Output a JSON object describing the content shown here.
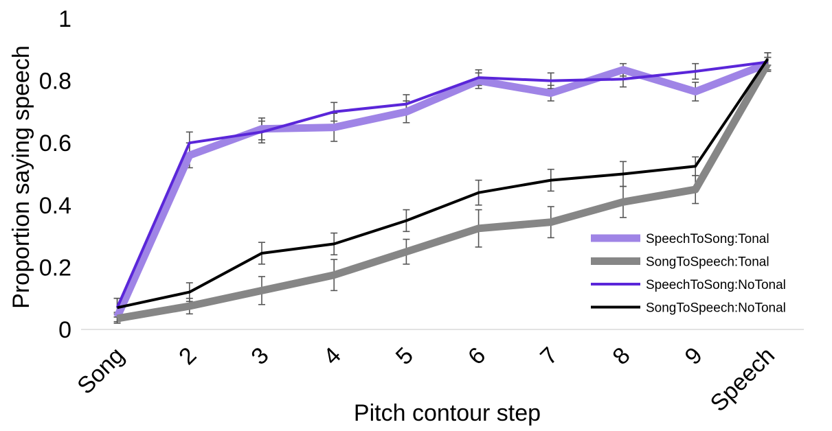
{
  "chart_data": {
    "type": "line",
    "title": "",
    "xlabel": "Pitch contour step",
    "ylabel": "Proportion saying speech",
    "categories": [
      "Song",
      "2",
      "3",
      "4",
      "5",
      "6",
      "7",
      "8",
      "9",
      "Speech"
    ],
    "ylim": [
      0,
      1
    ],
    "yticks": [
      "0",
      "0.2",
      "0.4",
      "0.6",
      "0.8",
      "1"
    ],
    "grid": false,
    "legend_position": "bottom-right",
    "series": [
      {
        "name": "SpeechToSong:Tonal",
        "color": "#9f84e6",
        "values": [
          0.04,
          0.56,
          0.645,
          0.65,
          0.7,
          0.8,
          0.76,
          0.835,
          0.765,
          0.855
        ],
        "errors": [
          0.015,
          0.04,
          0.035,
          0.045,
          0.035,
          0.025,
          0.025,
          0.02,
          0.03,
          0.02
        ]
      },
      {
        "name": "SongToSpeech:Tonal",
        "color": "#868686",
        "values": [
          0.035,
          0.075,
          0.125,
          0.175,
          0.25,
          0.325,
          0.345,
          0.41,
          0.45,
          0.855
        ],
        "errors": [
          0.015,
          0.025,
          0.045,
          0.05,
          0.04,
          0.06,
          0.05,
          0.05,
          0.045,
          0.02
        ]
      },
      {
        "name": "SpeechToSong:NoTonal",
        "color": "#5a26d9",
        "values": [
          0.07,
          0.6,
          0.635,
          0.7,
          0.725,
          0.81,
          0.8,
          0.805,
          0.83,
          0.86
        ],
        "errors": [
          0.03,
          0.035,
          0.035,
          0.03,
          0.03,
          0.025,
          0.025,
          0.025,
          0.025,
          0.03
        ]
      },
      {
        "name": "SongToSpeech:NoTonal",
        "color": "#000000",
        "values": [
          0.07,
          0.12,
          0.245,
          0.275,
          0.35,
          0.44,
          0.48,
          0.5,
          0.525,
          0.87
        ],
        "errors": [
          0.03,
          0.03,
          0.035,
          0.035,
          0.035,
          0.04,
          0.035,
          0.04,
          0.03,
          0.02
        ]
      }
    ]
  }
}
